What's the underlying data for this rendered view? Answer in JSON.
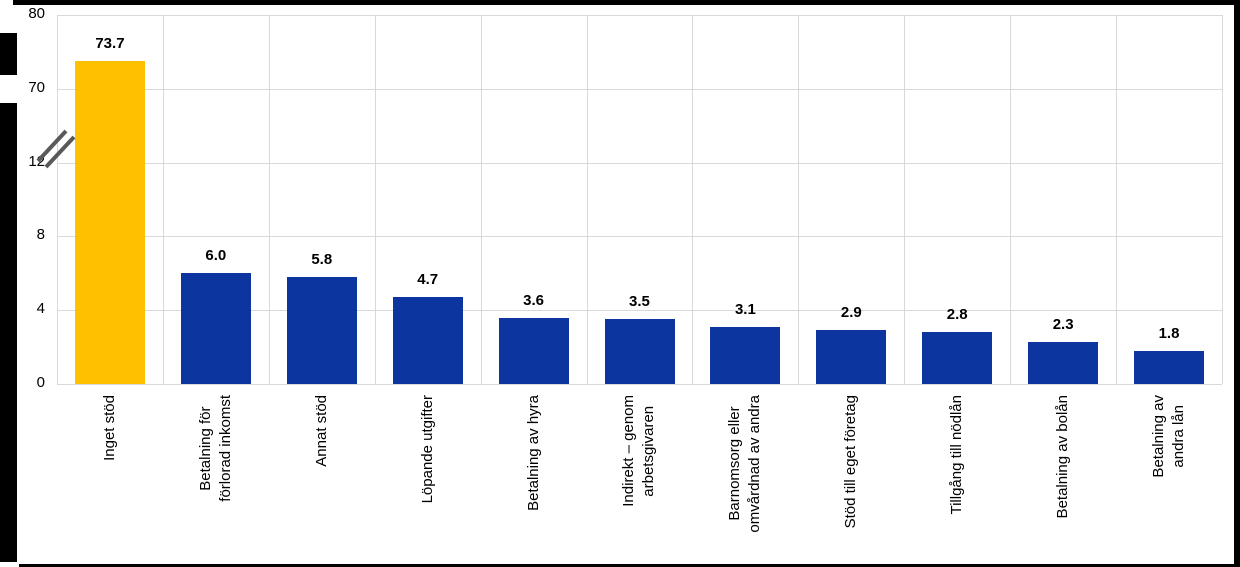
{
  "chart_data": {
    "type": "bar",
    "categories": [
      "Inget stöd",
      "Betalning för\nförlorad inkomst",
      "Annat stöd",
      "Löpande utgifter",
      "Betalning av hyra",
      "Indirekt – genom\narbetsgivaren",
      "Barnomsorg eller\nomvårdnad av andra",
      "Stöd till eget företag",
      "Tillgång till nödlån",
      "Betalning av bolån",
      "Betalning av\nandra lån"
    ],
    "values": [
      73.7,
      6.0,
      5.8,
      4.7,
      3.6,
      3.5,
      3.1,
      2.9,
      2.8,
      2.3,
      1.8
    ],
    "data_labels": [
      "73.7",
      "6.0",
      "5.8",
      "4.7",
      "3.6",
      "3.5",
      "3.1",
      "2.9",
      "2.8",
      "2.3",
      "1.8"
    ],
    "series_colors": {
      "highlight": "#FFC000",
      "default": "#0C35A0"
    },
    "highlight_index": 0,
    "gridline_color": "#d9d9d9",
    "axis_break_color": "#595959",
    "y_axis": {
      "tick_labels_top_to_bottom": [
        "80",
        "70",
        "12",
        "8",
        "4",
        "0"
      ],
      "axis_break": true,
      "lower_segment": {
        "min": 0,
        "max": 12
      },
      "upper_segment": {
        "min": 70,
        "max": 80
      },
      "gridlines": true
    },
    "x_axis": {
      "label_rotation_degrees": -90,
      "legend": "none"
    }
  }
}
